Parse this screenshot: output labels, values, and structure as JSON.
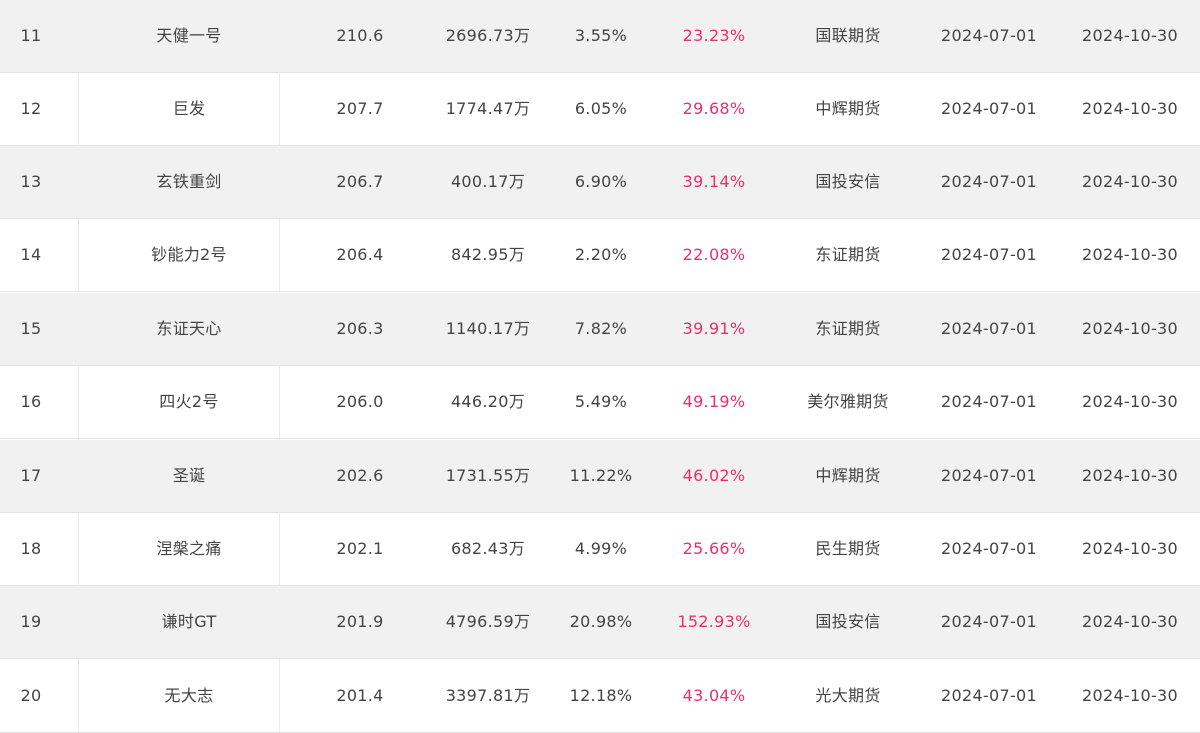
{
  "table": {
    "rows": [
      {
        "rank": "11",
        "name": "天健一号",
        "score": "210.6",
        "equity": "2696.73万",
        "drawdown": "3.55%",
        "return": "23.23%",
        "broker": "国联期货",
        "start": "2024-07-01",
        "end": "2024-10-30"
      },
      {
        "rank": "12",
        "name": "巨发",
        "score": "207.7",
        "equity": "1774.47万",
        "drawdown": "6.05%",
        "return": "29.68%",
        "broker": "中辉期货",
        "start": "2024-07-01",
        "end": "2024-10-30"
      },
      {
        "rank": "13",
        "name": "玄铁重剑",
        "score": "206.7",
        "equity": "400.17万",
        "drawdown": "6.90%",
        "return": "39.14%",
        "broker": "国投安信",
        "start": "2024-07-01",
        "end": "2024-10-30"
      },
      {
        "rank": "14",
        "name": "钞能力2号",
        "score": "206.4",
        "equity": "842.95万",
        "drawdown": "2.20%",
        "return": "22.08%",
        "broker": "东证期货",
        "start": "2024-07-01",
        "end": "2024-10-30"
      },
      {
        "rank": "15",
        "name": "东证天心",
        "score": "206.3",
        "equity": "1140.17万",
        "drawdown": "7.82%",
        "return": "39.91%",
        "broker": "东证期货",
        "start": "2024-07-01",
        "end": "2024-10-30"
      },
      {
        "rank": "16",
        "name": "四火2号",
        "score": "206.0",
        "equity": "446.20万",
        "drawdown": "5.49%",
        "return": "49.19%",
        "broker": "美尔雅期货",
        "start": "2024-07-01",
        "end": "2024-10-30"
      },
      {
        "rank": "17",
        "name": "圣诞",
        "score": "202.6",
        "equity": "1731.55万",
        "drawdown": "11.22%",
        "return": "46.02%",
        "broker": "中辉期货",
        "start": "2024-07-01",
        "end": "2024-10-30"
      },
      {
        "rank": "18",
        "name": "涅槃之痛",
        "score": "202.1",
        "equity": "682.43万",
        "drawdown": "4.99%",
        "return": "25.66%",
        "broker": "民生期货",
        "start": "2024-07-01",
        "end": "2024-10-30"
      },
      {
        "rank": "19",
        "name": "谦时GT",
        "score": "201.9",
        "equity": "4796.59万",
        "drawdown": "20.98%",
        "return": "152.93%",
        "broker": "国投安信",
        "start": "2024-07-01",
        "end": "2024-10-30"
      },
      {
        "rank": "20",
        "name": "无大志",
        "score": "201.4",
        "equity": "3397.81万",
        "drawdown": "12.18%",
        "return": "43.04%",
        "broker": "光大期货",
        "start": "2024-07-01",
        "end": "2024-10-30"
      }
    ]
  },
  "colors": {
    "row_alt": "#f1f1f1",
    "row_plain": "#ffffff",
    "text": "#444444",
    "return_accent": "#e8306e",
    "border": "#e4e4e4"
  }
}
